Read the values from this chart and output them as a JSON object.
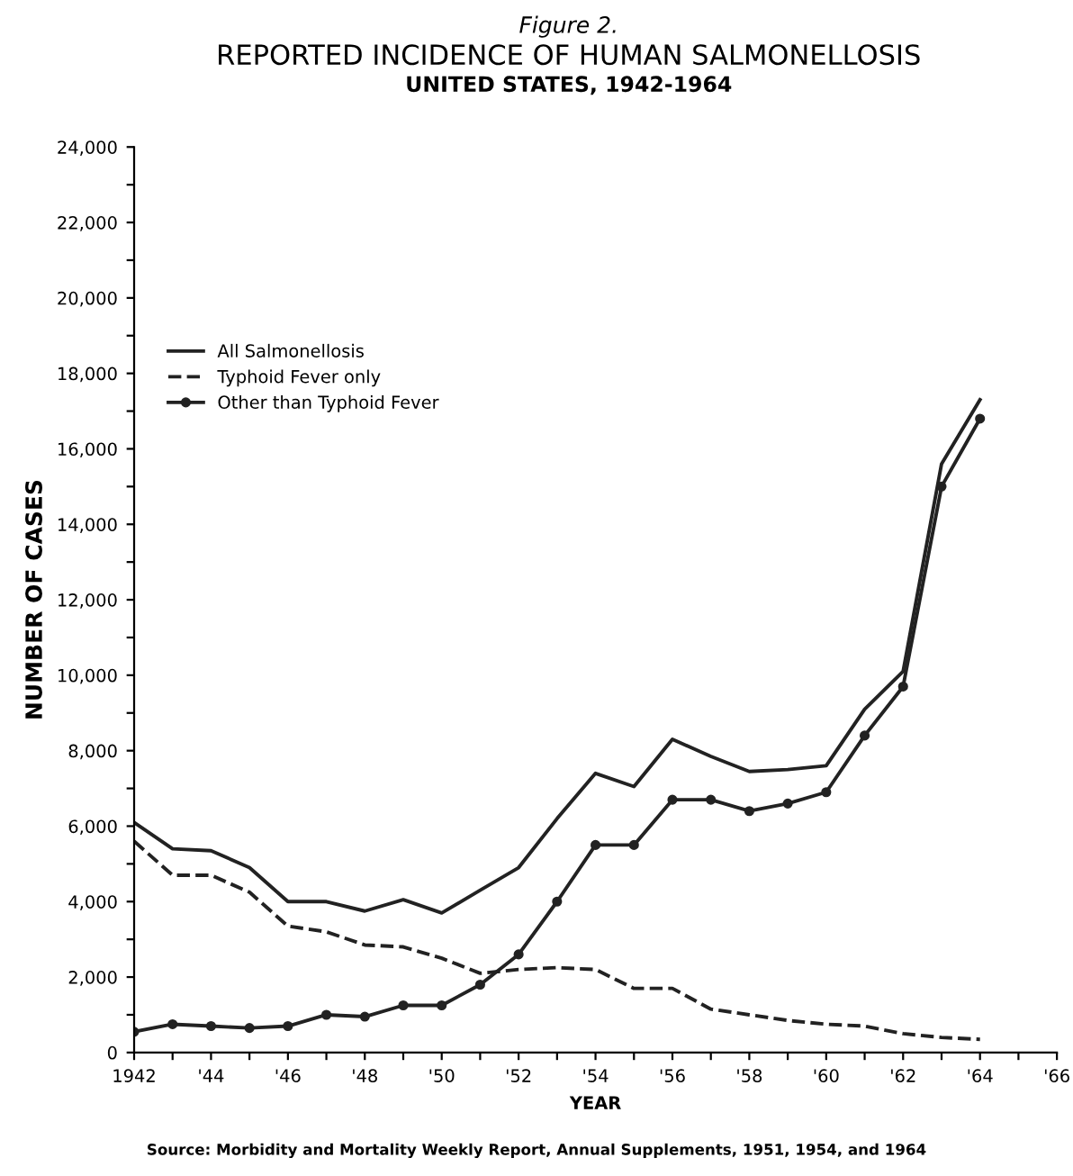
{
  "chart_data": {
    "type": "line",
    "title": "REPORTED INCIDENCE OF HUMAN SALMONELLOSIS",
    "subtitle": "UNITED STATES, 1942-1964",
    "xlabel": "YEAR",
    "ylabel": "NUMBER OF CASES",
    "annotations": [
      "Figure 2.",
      "Source: Morbidity and Mortality Weekly Report, Annual Supplements, 1951, 1954, and 1964"
    ],
    "x": [
      1942,
      1943,
      1944,
      1945,
      1946,
      1947,
      1948,
      1949,
      1950,
      1951,
      1952,
      1953,
      1954,
      1955,
      1956,
      1957,
      1958,
      1959,
      1960,
      1961,
      1962,
      1963,
      1964
    ],
    "series": [
      {
        "name": "All Salmonellosis",
        "color": "#222222",
        "line_style": "solid",
        "marker": "none",
        "values": [
          6100,
          5400,
          5350,
          4900,
          4000,
          4000,
          3750,
          4050,
          3700,
          4300,
          4900,
          6200,
          7400,
          7050,
          8300,
          7850,
          7450,
          7500,
          7600,
          9100,
          10100,
          15600,
          17300
        ]
      },
      {
        "name": "Typhoid Fever only",
        "color": "#222222",
        "line_style": "dashed",
        "marker": "none",
        "values": [
          5600,
          4700,
          4700,
          4250,
          3350,
          3200,
          2850,
          2800,
          2500,
          2100,
          2200,
          2250,
          2200,
          1700,
          1700,
          1150,
          1000,
          850,
          750,
          700,
          500,
          400,
          350
        ]
      },
      {
        "name": "Other than Typhoid Fever",
        "color": "#222222",
        "line_style": "solid",
        "marker": "circle",
        "values": [
          550,
          750,
          700,
          650,
          700,
          1000,
          950,
          1250,
          1250,
          1800,
          2600,
          4000,
          5500,
          5500,
          6700,
          6700,
          6400,
          6600,
          6900,
          8400,
          9700,
          15000,
          16800
        ]
      }
    ],
    "xlim": [
      1942,
      1966
    ],
    "xticks": [
      {
        "value": 1942,
        "label": "1942"
      },
      {
        "value": 1943,
        "label": null
      },
      {
        "value": 1944,
        "label": "'44"
      },
      {
        "value": 1945,
        "label": null
      },
      {
        "value": 1946,
        "label": "'46"
      },
      {
        "value": 1947,
        "label": null
      },
      {
        "value": 1948,
        "label": "'48"
      },
      {
        "value": 1949,
        "label": null
      },
      {
        "value": 1950,
        "label": "'50"
      },
      {
        "value": 1951,
        "label": null
      },
      {
        "value": 1952,
        "label": "'52"
      },
      {
        "value": 1953,
        "label": null
      },
      {
        "value": 1954,
        "label": "'54"
      },
      {
        "value": 1955,
        "label": null
      },
      {
        "value": 1956,
        "label": "'56"
      },
      {
        "value": 1957,
        "label": null
      },
      {
        "value": 1958,
        "label": "'58"
      },
      {
        "value": 1959,
        "label": null
      },
      {
        "value": 1960,
        "label": "'60"
      },
      {
        "value": 1961,
        "label": null
      },
      {
        "value": 1962,
        "label": "'62"
      },
      {
        "value": 1963,
        "label": null
      },
      {
        "value": 1964,
        "label": "'64"
      },
      {
        "value": 1965,
        "label": null
      },
      {
        "value": 1966,
        "label": "'66"
      }
    ],
    "ylim": [
      0,
      24000
    ],
    "yticks": [
      0,
      {
        "value": 1000,
        "label": null
      },
      {
        "value": 2000,
        "label": "2,000"
      },
      {
        "value": 3000,
        "label": null
      },
      {
        "value": 4000,
        "label": "4,000"
      },
      {
        "value": 5000,
        "label": null
      },
      {
        "value": 6000,
        "label": "6,000"
      },
      {
        "value": 7000,
        "label": null
      },
      {
        "value": 8000,
        "label": "8,000"
      },
      {
        "value": 9000,
        "label": null
      },
      {
        "value": 10000,
        "label": "10,000"
      },
      {
        "value": 11000,
        "label": null
      },
      {
        "value": 12000,
        "label": "12,000"
      },
      {
        "value": 13000,
        "label": null
      },
      {
        "value": 14000,
        "label": "14,000"
      },
      {
        "value": 15000,
        "label": null
      },
      {
        "value": 16000,
        "label": "16,000"
      },
      {
        "value": 17000,
        "label": null
      },
      {
        "value": 18000,
        "label": "18,000"
      },
      {
        "value": 19000,
        "label": null
      },
      {
        "value": 20000,
        "label": "20,000"
      },
      {
        "value": 21000,
        "label": null
      },
      {
        "value": 22000,
        "label": "22,000"
      },
      {
        "value": 23000,
        "label": null
      },
      {
        "value": 24000,
        "label": "24,000"
      }
    ],
    "grid": false,
    "legend": "top left"
  }
}
